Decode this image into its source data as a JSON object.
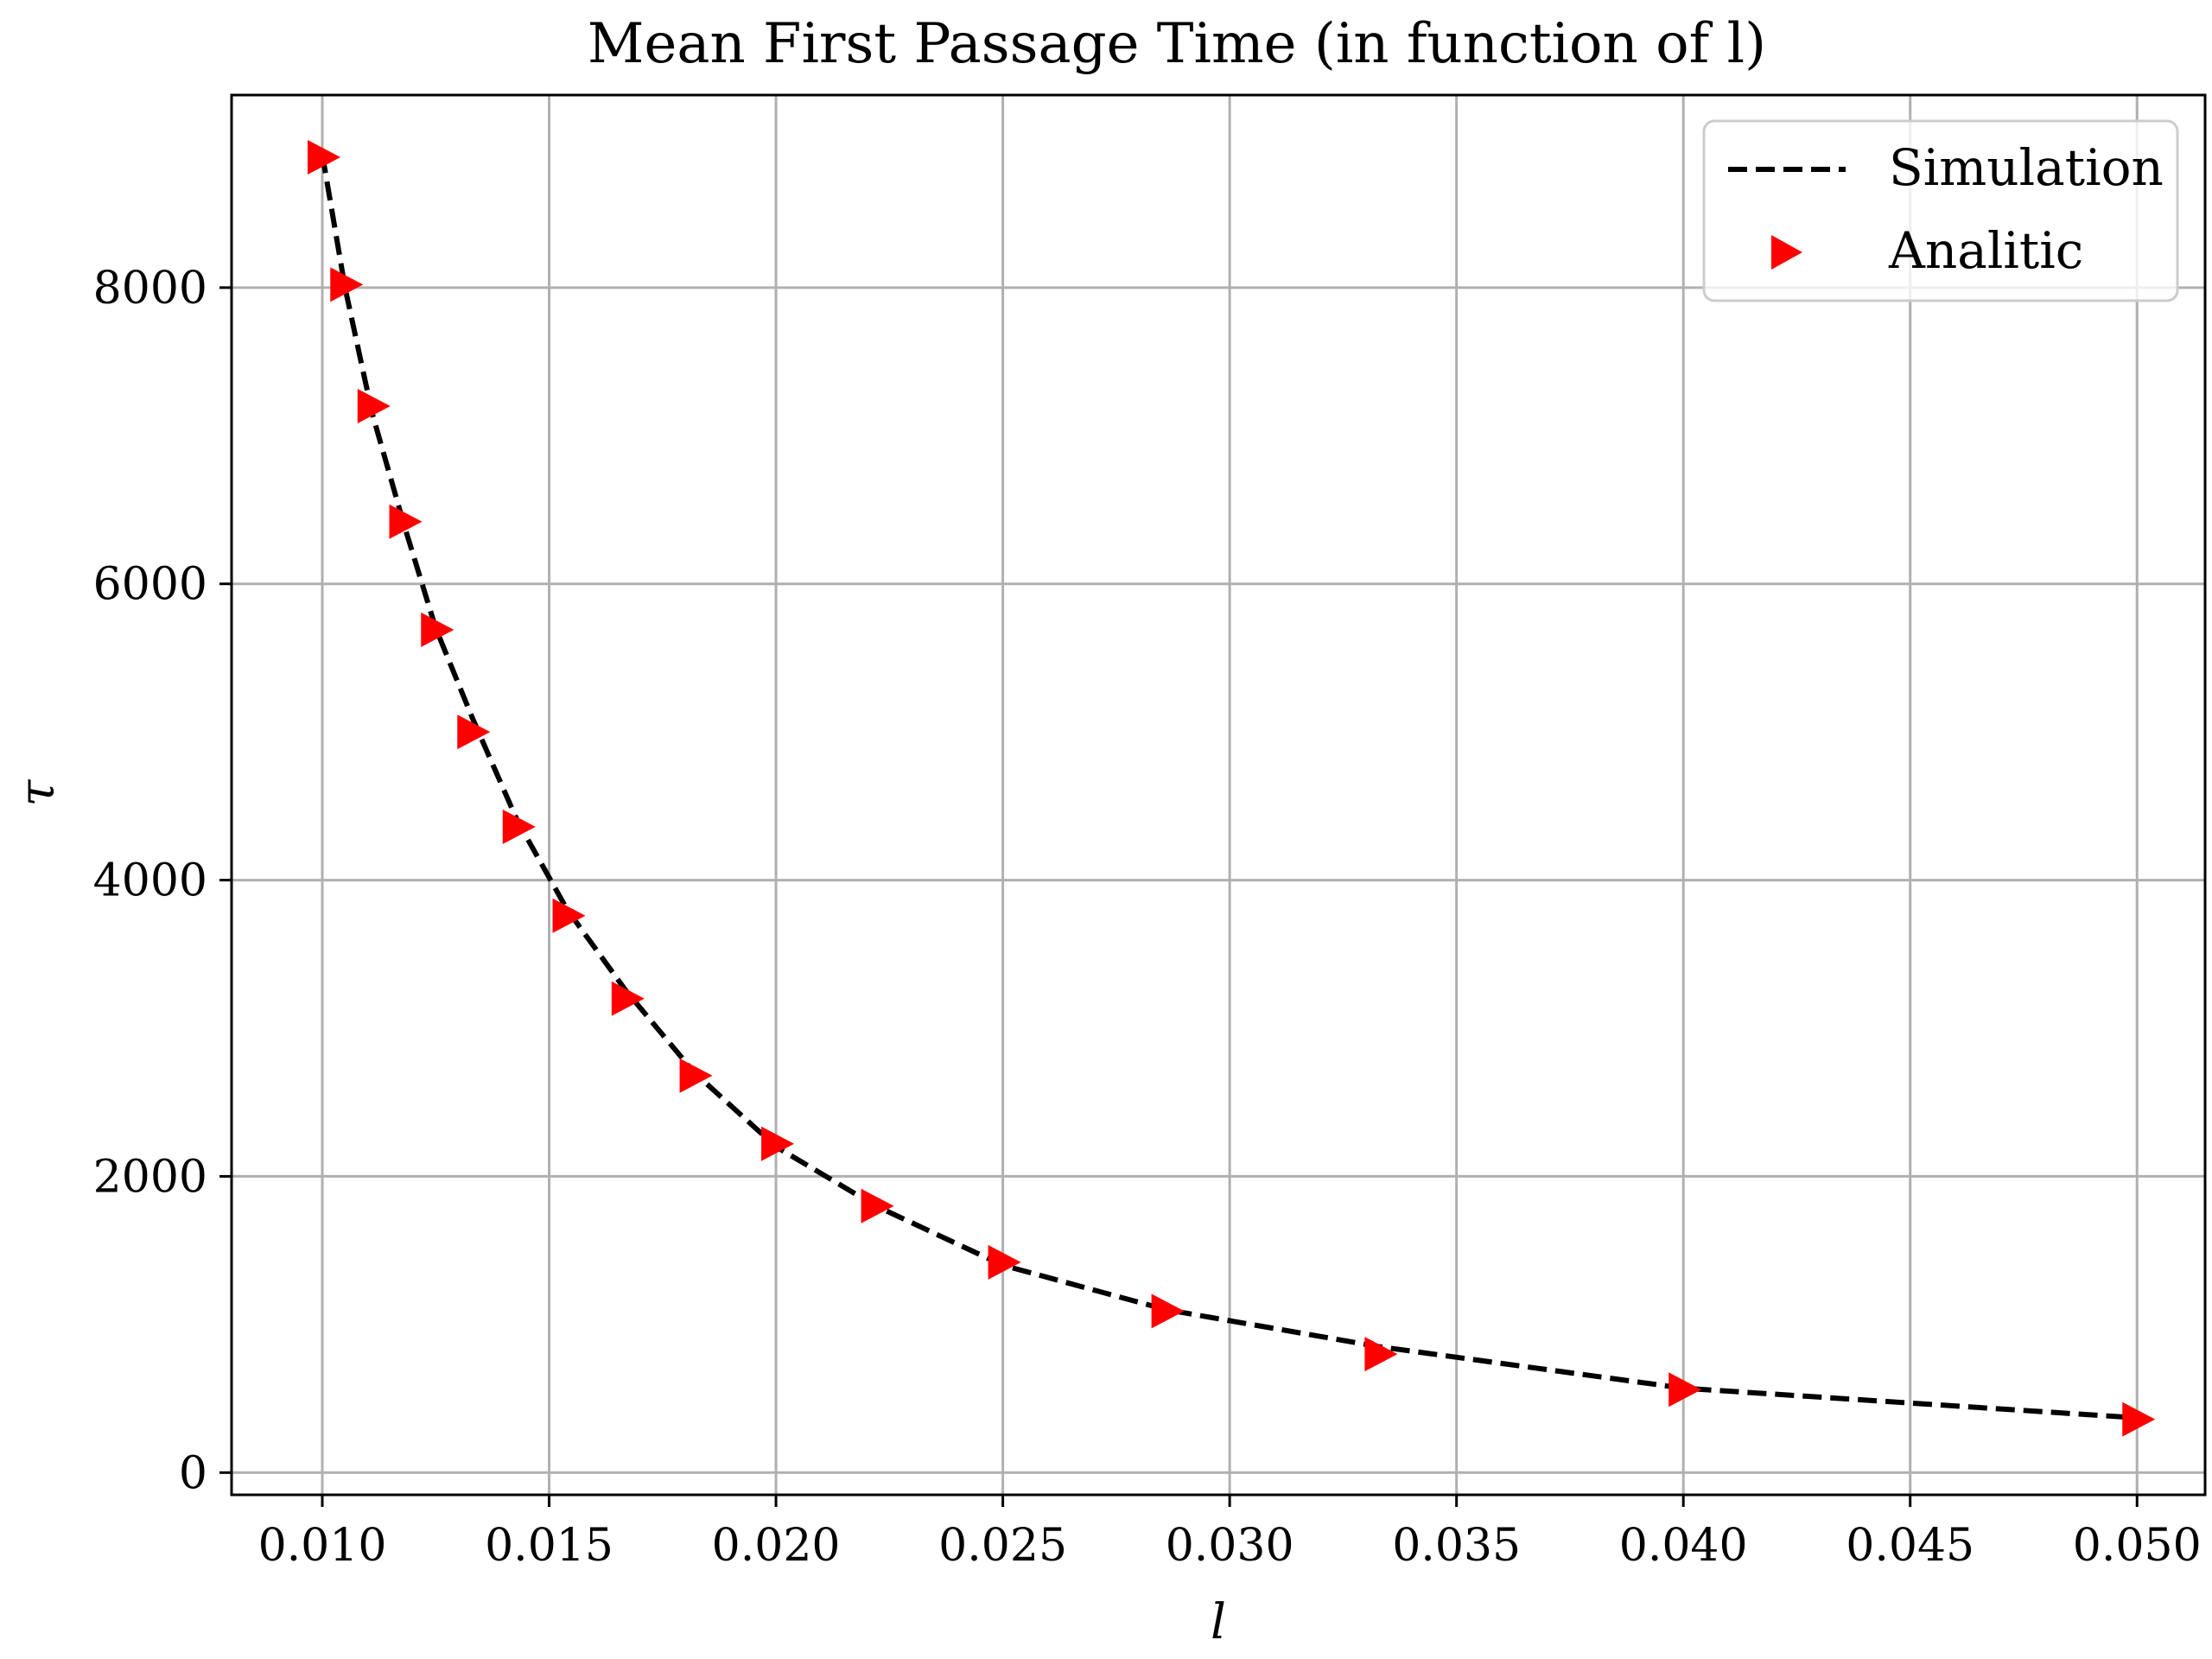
{
  "chart_data": {
    "type": "line",
    "title": "Mean First Passage Time (in function of l)",
    "xlabel": "l",
    "ylabel": "τ",
    "xlim": [
      0.008,
      0.0515
    ],
    "ylim": [
      -150,
      9300
    ],
    "xticks": [
      0.01,
      0.015,
      0.02,
      0.025,
      0.03,
      0.035,
      0.04,
      0.045,
      0.05
    ],
    "xtick_labels": [
      "0.010",
      "0.015",
      "0.020",
      "0.025",
      "0.030",
      "0.035",
      "0.040",
      "0.045",
      "0.050"
    ],
    "yticks": [
      0,
      2000,
      4000,
      6000,
      8000
    ],
    "ytick_labels": [
      "0",
      "2000",
      "4000",
      "6000",
      "8000"
    ],
    "grid": true,
    "legend_position": "top-right",
    "series": [
      {
        "name": "Simulation",
        "style": "dashed-line",
        "color": "#000000",
        "x": [
          0.01,
          0.0105,
          0.0111,
          0.0118,
          0.0125,
          0.0133,
          0.0143,
          0.0154,
          0.0167,
          0.0182,
          0.02,
          0.0222,
          0.025,
          0.0286,
          0.0333,
          0.04,
          0.05
        ],
        "y": [
          8900,
          8000,
          7150,
          6400,
          5700,
          5100,
          4400,
          3800,
          3250,
          2700,
          2200,
          1800,
          1400,
          1100,
          850,
          570,
          370
        ]
      },
      {
        "name": "Analitic",
        "style": "right-triangle-marker",
        "color": "#ff0000",
        "x": [
          0.01,
          0.0105,
          0.0111,
          0.0118,
          0.0125,
          0.0133,
          0.0143,
          0.0154,
          0.0167,
          0.0182,
          0.02,
          0.0222,
          0.025,
          0.0286,
          0.0333,
          0.04,
          0.05
        ],
        "y": [
          8880,
          8020,
          7200,
          6420,
          5690,
          5000,
          4360,
          3760,
          3200,
          2680,
          2220,
          1800,
          1420,
          1090,
          800,
          560,
          360
        ]
      }
    ]
  }
}
